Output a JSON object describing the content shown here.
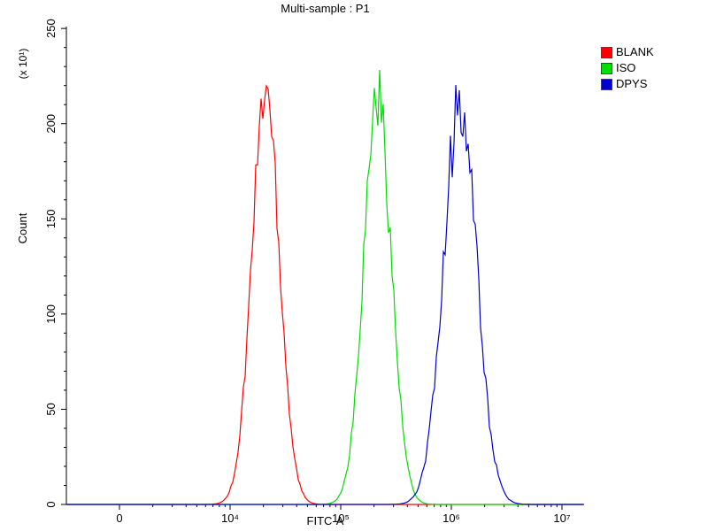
{
  "chart_data": {
    "type": "line",
    "title": "Multi-sample : P1",
    "xlabel": "FITC-A",
    "ylabel": "Count",
    "y_axis_unit": "(x 10¹)",
    "x_scale": "biexponential-log",
    "x_log_range": [
      2.52,
      7.2
    ],
    "ylim": [
      0,
      251
    ],
    "x_ticks": [
      {
        "label": "0",
        "log": 3.0
      },
      {
        "label": "10⁴",
        "log": 4.0
      },
      {
        "label": "10⁵",
        "log": 5.0
      },
      {
        "label": "10⁶",
        "log": 6.0
      },
      {
        "label": "10⁷",
        "log": 7.0
      }
    ],
    "x_minor_tick_decades": [
      3,
      4,
      5,
      6
    ],
    "y_ticks": [
      0,
      50,
      100,
      150,
      200,
      250
    ],
    "y_minor_tick_step": 10,
    "grid": false,
    "legend_position": "top-right",
    "series": [
      {
        "name": "BLANK",
        "color": "#ff0000",
        "peak_x": 21000,
        "peak_count": 218,
        "sigma_log": 0.125
      },
      {
        "name": "ISO",
        "color": "#00dd00",
        "peak_x": 215000,
        "peak_count": 215,
        "sigma_log": 0.125
      },
      {
        "name": "DPYS",
        "color": "#0000cc",
        "peak_x": 1200000,
        "peak_count": 211,
        "sigma_log": 0.15
      }
    ]
  }
}
